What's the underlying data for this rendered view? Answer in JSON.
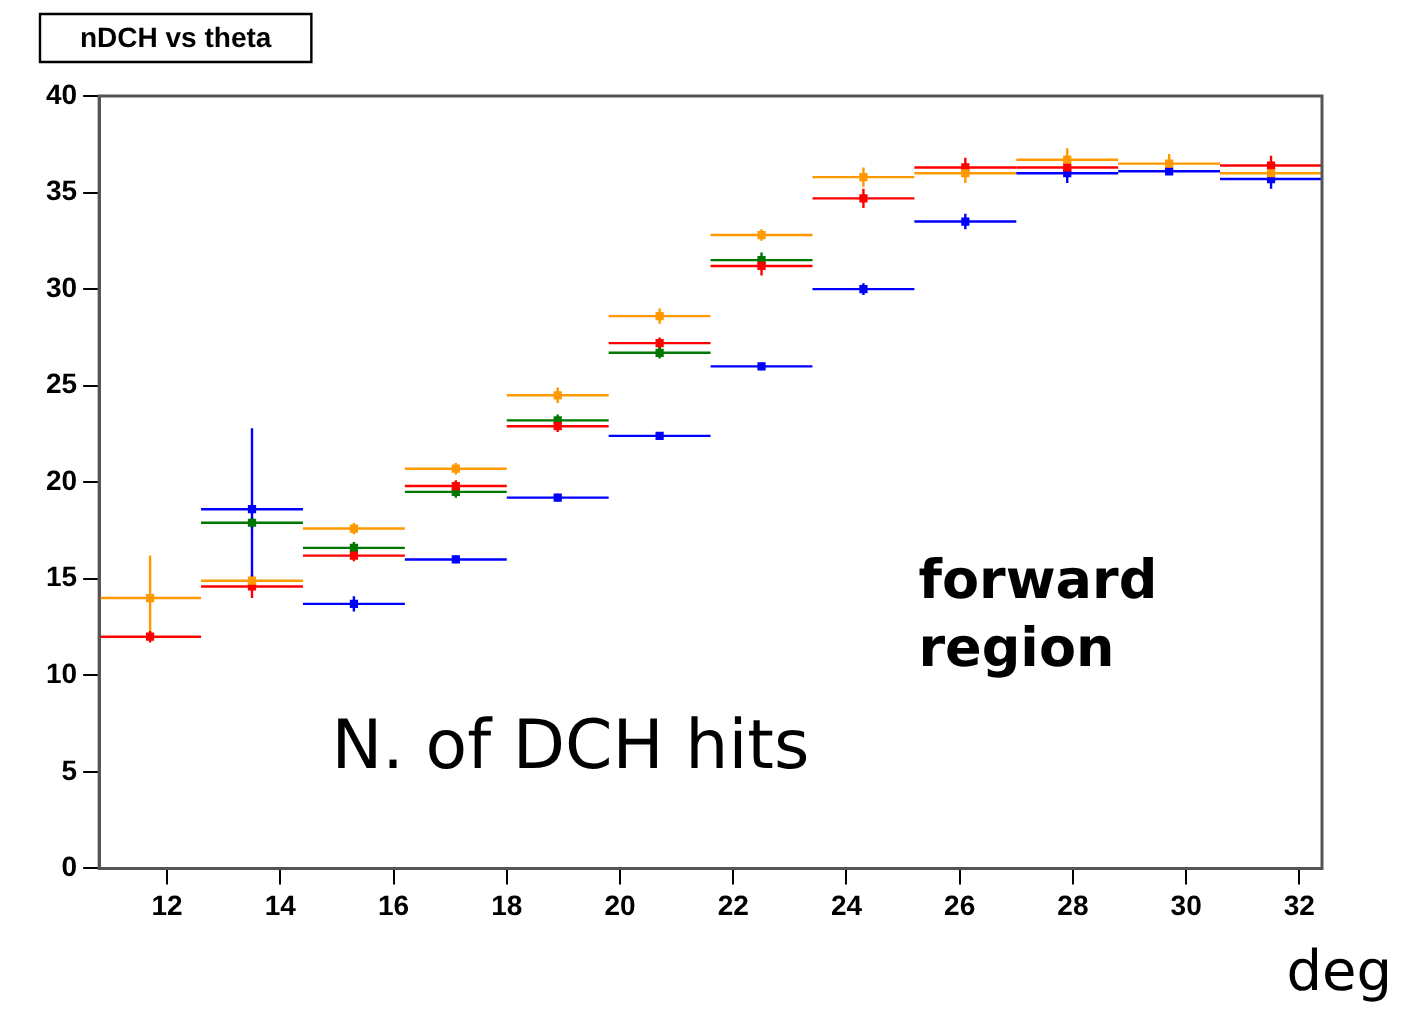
{
  "chart_data": {
    "type": "scatter",
    "title": "nDCH vs theta",
    "xlabel": "deg",
    "annotations": [
      "N. of DCH hits",
      "forward region"
    ],
    "x": [
      11.7,
      13.5,
      15.3,
      17.1,
      18.9,
      20.7,
      22.5,
      24.3,
      26.1,
      27.9,
      29.7,
      31.5
    ],
    "series": [
      {
        "color": "#ff9900",
        "values": [
          14.0,
          14.9,
          17.6,
          20.7,
          24.5,
          28.6,
          32.8,
          35.8,
          36.0,
          36.7,
          36.5,
          36.0
        ],
        "errors": [
          2.2,
          0.3,
          0.3,
          0.3,
          0.4,
          0.4,
          0.3,
          0.5,
          0.5,
          0.6,
          0.5,
          null
        ],
        "xerrors": [
          0.9,
          0.9,
          0.9,
          0.9,
          0.9,
          0.9,
          0.9,
          0.9,
          0.9,
          0.9,
          0.9,
          0.9
        ]
      },
      {
        "color": "#ff0000",
        "values": [
          12.0,
          14.6,
          16.2,
          19.8,
          22.9,
          27.2,
          31.2,
          34.7,
          36.3,
          36.3,
          null,
          36.4
        ],
        "errors": [
          0.3,
          0.6,
          0.3,
          0.3,
          0.3,
          0.3,
          0.5,
          0.5,
          0.5,
          null,
          null,
          0.5
        ],
        "xerrors": [
          0.9,
          0.9,
          0.9,
          0.9,
          0.9,
          0.9,
          0.9,
          0.9,
          0.9,
          0.9,
          null,
          0.9
        ]
      },
      {
        "color": "#007700",
        "values": [
          null,
          17.9,
          16.6,
          19.5,
          23.2,
          26.7,
          31.5,
          null,
          null,
          null,
          null,
          null
        ],
        "errors": [
          null,
          0.3,
          0.3,
          0.3,
          0.3,
          0.3,
          0.4,
          null,
          null,
          null,
          null,
          null
        ],
        "xerrors": [
          null,
          0.9,
          0.9,
          0.9,
          0.9,
          0.9,
          0.9,
          null,
          null,
          null,
          null,
          null
        ]
      },
      {
        "color": "#0000ff",
        "values": [
          null,
          18.6,
          13.7,
          16.0,
          19.2,
          22.4,
          26.0,
          30.0,
          33.5,
          36.0,
          36.1,
          35.7
        ],
        "errors": [
          null,
          4.2,
          0.4,
          0.2,
          0.2,
          0.2,
          0.2,
          0.3,
          0.4,
          0.5,
          null,
          0.5
        ],
        "xerrors": [
          null,
          0.9,
          0.9,
          0.9,
          0.9,
          0.9,
          0.9,
          0.9,
          0.9,
          0.9,
          0.9,
          0.9
        ]
      }
    ],
    "xlim": [
      10.8,
      32.4
    ],
    "xticks": [
      12,
      14,
      16,
      18,
      20,
      22,
      24,
      26,
      28,
      30,
      32
    ],
    "ylim": [
      0,
      40
    ],
    "yticks": [
      0,
      5,
      10,
      15,
      20,
      25,
      30,
      35,
      40
    ],
    "grid": false,
    "legend": false,
    "marker": "square"
  }
}
